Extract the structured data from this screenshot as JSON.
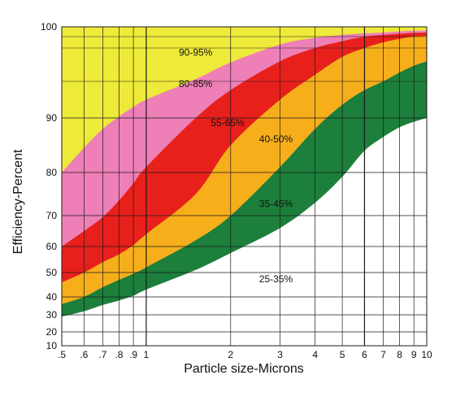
{
  "chart_data": {
    "type": "area",
    "xlabel": "Particle size-Microns",
    "ylabel": "Efficiency-Percent",
    "xscale": "log",
    "xlim": [
      0.5,
      10
    ],
    "ylim": [
      10,
      100
    ],
    "x_ticks": [
      {
        "value": 0.5,
        "label": ".5"
      },
      {
        "value": 0.6,
        "label": ".6"
      },
      {
        "value": 0.7,
        "label": ".7"
      },
      {
        "value": 0.8,
        "label": ".8"
      },
      {
        "value": 0.9,
        "label": ".9"
      },
      {
        "value": 1,
        "label": "1"
      },
      {
        "value": 2,
        "label": "2"
      },
      {
        "value": 3,
        "label": "3"
      },
      {
        "value": 4,
        "label": "4"
      },
      {
        "value": 5,
        "label": "5"
      },
      {
        "value": 6,
        "label": "6"
      },
      {
        "value": 7,
        "label": "7"
      },
      {
        "value": 8,
        "label": "8"
      },
      {
        "value": 9,
        "label": "9"
      },
      {
        "value": 10,
        "label": "10"
      }
    ],
    "y_ticks": [
      {
        "value": 10,
        "label": "10"
      },
      {
        "value": 20,
        "label": "20"
      },
      {
        "value": 30,
        "label": "30"
      },
      {
        "value": 40,
        "label": "40"
      },
      {
        "value": 50,
        "label": "50"
      },
      {
        "value": 60,
        "label": "60"
      },
      {
        "value": 70,
        "label": "70"
      },
      {
        "value": 80,
        "label": "80"
      },
      {
        "value": 90,
        "label": "90"
      },
      {
        "value": 100,
        "label": "100"
      }
    ],
    "y_minor_grid": [
      95,
      98,
      99
    ],
    "grid": true,
    "background_color": "#eeea3a",
    "x": [
      0.5,
      0.6,
      0.7,
      0.8,
      0.9,
      1,
      1.5,
      2,
      3,
      4,
      5,
      6,
      7,
      8,
      9,
      10
    ],
    "bands": [
      {
        "label": "90-95%",
        "color": "#ee7fb7",
        "lower": [
          80,
          84.5,
          88,
          90.2,
          91.5,
          92.5,
          95.2,
          96.7,
          98.3,
          98.9,
          99.2,
          99.4,
          99.5,
          99.6,
          99.65,
          99.7
        ]
      },
      {
        "label": "80-85%",
        "color": "#e8201c",
        "lower": [
          60,
          65,
          69.5,
          73.5,
          77.5,
          81,
          90,
          93.8,
          96.8,
          98,
          98.6,
          99,
          99.2,
          99.35,
          99.45,
          99.5
        ]
      },
      {
        "label": "55-65%",
        "color": "#f6ae1b",
        "lower": [
          46,
          50,
          54,
          57,
          60.5,
          64,
          75,
          85,
          92.5,
          95.6,
          97.2,
          98,
          98.5,
          98.8,
          99,
          99.1
        ]
      },
      {
        "label": "40-50%",
        "color": "#1c7f3b",
        "lower": [
          36,
          40,
          44,
          47,
          49.5,
          52,
          62,
          70,
          81,
          88,
          91.8,
          93.8,
          95,
          95.8,
          96.4,
          96.8
        ]
      },
      {
        "label": "35-45%",
        "color": "#ffffff",
        "lower": [
          10,
          10,
          10,
          10,
          10,
          10,
          10,
          10,
          10,
          10,
          10,
          10,
          10,
          10,
          10,
          10
        ],
        "upper": [
          29,
          32,
          35.5,
          38,
          40.5,
          43,
          51,
          57.5,
          66,
          73,
          79,
          84,
          86.5,
          88.3,
          89.3,
          90
        ]
      },
      {
        "label": "25-35%",
        "color": "#ffffff",
        "lower": [],
        "upper": []
      }
    ],
    "band_label_positions": [
      {
        "label": "90-95%",
        "x": 1.5,
        "y": 97.3
      },
      {
        "label": "80-85%",
        "x": 1.5,
        "y": 94.2
      },
      {
        "label": "55-65%",
        "x": 1.95,
        "y": 88.5
      },
      {
        "label": "40-50%",
        "x": 2.9,
        "y": 85.5
      },
      {
        "label": "35-45%",
        "x": 2.9,
        "y": 72
      },
      {
        "label": "25-35%",
        "x": 2.9,
        "y": 46
      }
    ]
  }
}
